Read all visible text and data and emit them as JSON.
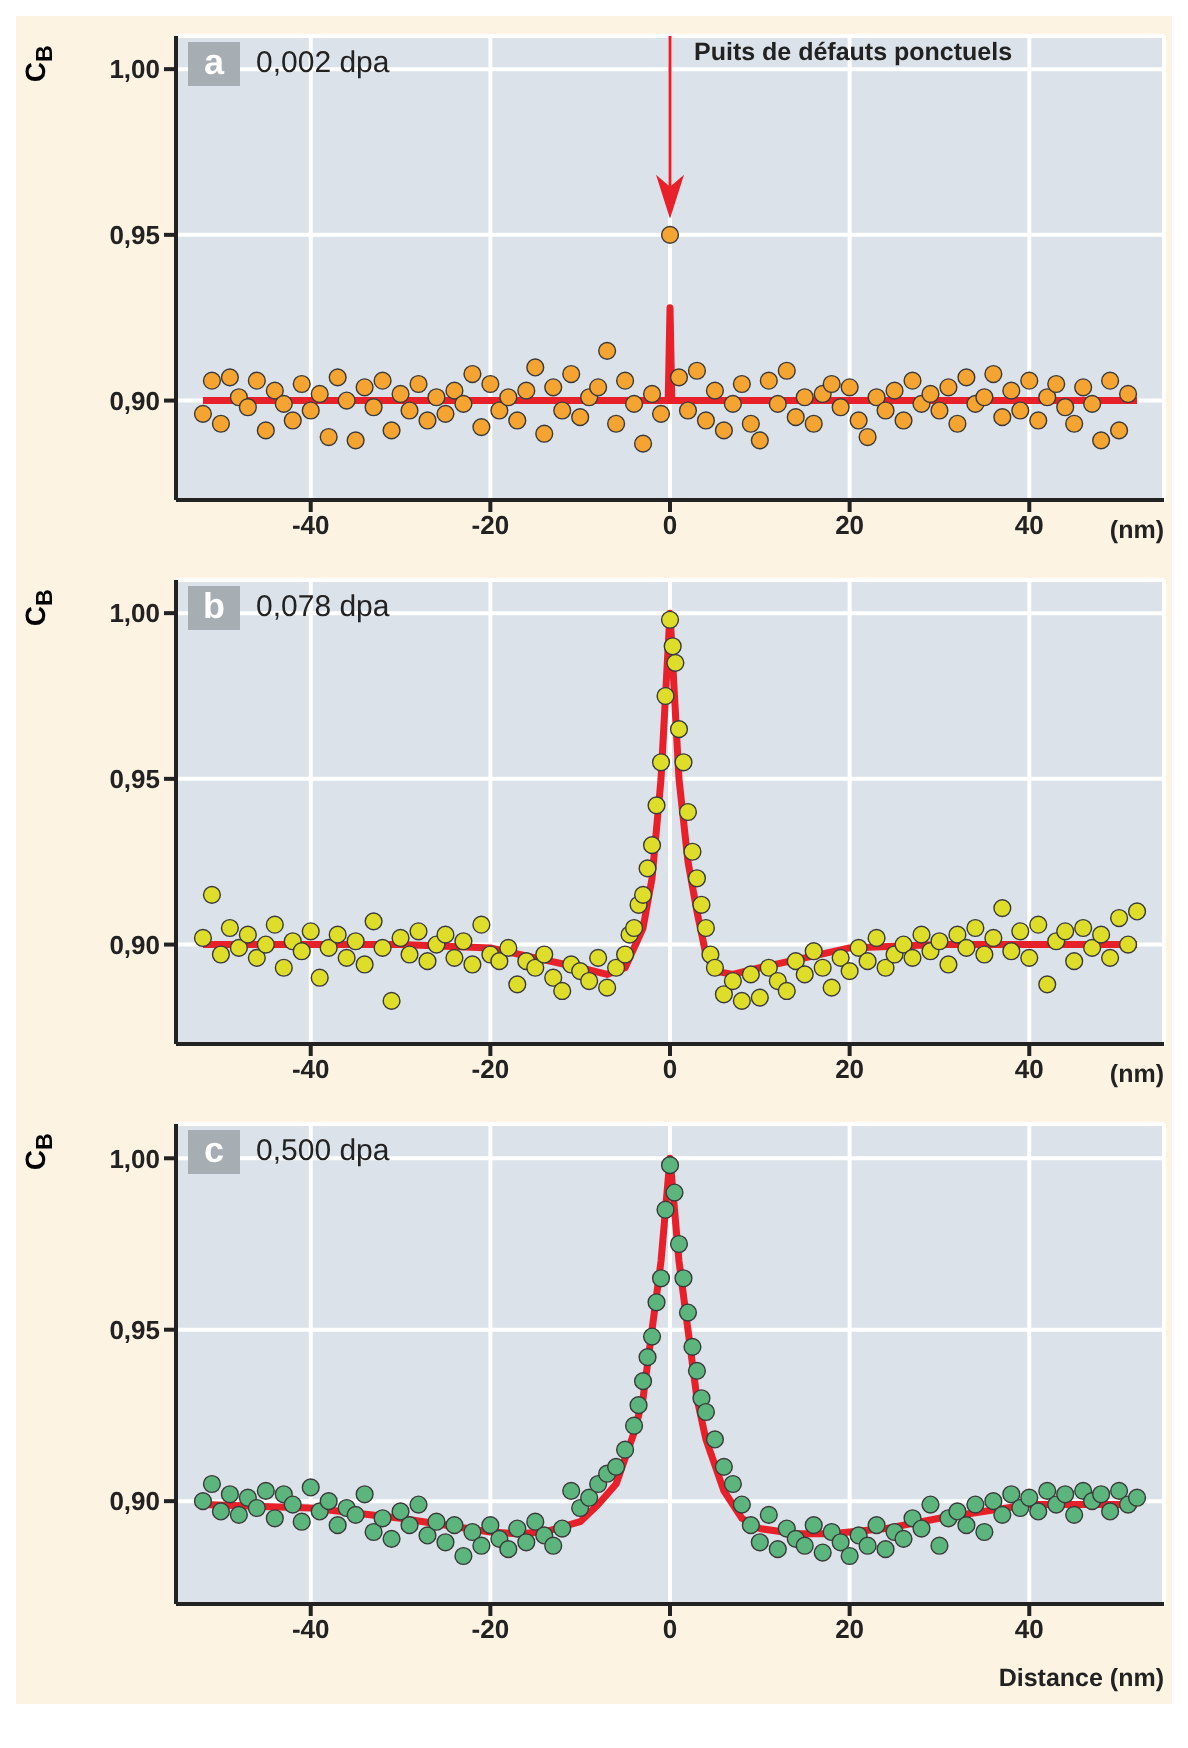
{
  "chart_data": [
    {
      "type": "scatter",
      "title": "a",
      "ylabel": "C$_{B}$",
      "xlabel": "(nm)",
      "annotations": [
        "0,002 dpa",
        "Puits de défauts ponctuels"
      ],
      "xlim": [
        -55,
        55
      ],
      "ylim": [
        0.87,
        1.01
      ],
      "xticks": [
        -40,
        -20,
        0,
        20,
        40
      ],
      "yticks": [
        {
          "value": 0.9,
          "label": "0,90"
        },
        {
          "value": 0.95,
          "label": "0,95"
        },
        {
          "value": 1.0,
          "label": "1,00"
        }
      ],
      "grid": true,
      "series": [
        {
          "type": "scatter",
          "marker": "circle",
          "color": "#f5a331",
          "x": [
            -52,
            -51,
            -50,
            -49,
            -48,
            -47,
            -46,
            -45,
            -44,
            -43,
            -42,
            -41,
            -40,
            -39,
            -38,
            -37,
            -36,
            -35,
            -34,
            -33,
            -32,
            -31,
            -30,
            -29,
            -28,
            -27,
            -26,
            -25,
            -24,
            -23,
            -22,
            -21,
            -20,
            -19,
            -18,
            -17,
            -16,
            -15,
            -14,
            -13,
            -12,
            -11,
            -10,
            -9,
            -8,
            -7,
            -6,
            -5,
            -4,
            -3,
            -2,
            -1,
            0,
            1,
            2,
            3,
            4,
            5,
            6,
            7,
            8,
            9,
            10,
            11,
            12,
            13,
            14,
            15,
            16,
            17,
            18,
            19,
            20,
            21,
            22,
            23,
            24,
            25,
            26,
            27,
            28,
            29,
            30,
            31,
            32,
            33,
            34,
            35,
            36,
            37,
            38,
            39,
            40,
            41,
            42,
            43,
            44,
            45,
            46,
            47,
            48,
            49,
            50,
            51
          ],
          "values": [
            0.896,
            0.906,
            0.893,
            0.907,
            0.901,
            0.898,
            0.906,
            0.891,
            0.903,
            0.899,
            0.894,
            0.905,
            0.897,
            0.902,
            0.889,
            0.907,
            0.9,
            0.888,
            0.904,
            0.898,
            0.906,
            0.891,
            0.902,
            0.897,
            0.905,
            0.894,
            0.901,
            0.896,
            0.903,
            0.899,
            0.908,
            0.892,
            0.905,
            0.897,
            0.901,
            0.894,
            0.903,
            0.91,
            0.89,
            0.904,
            0.897,
            0.908,
            0.895,
            0.901,
            0.904,
            0.915,
            0.893,
            0.906,
            0.899,
            0.887,
            0.902,
            0.896,
            0.95,
            0.907,
            0.897,
            0.909,
            0.894,
            0.903,
            0.891,
            0.899,
            0.905,
            0.893,
            0.888,
            0.906,
            0.899,
            0.909,
            0.895,
            0.901,
            0.893,
            0.902,
            0.905,
            0.898,
            0.904,
            0.894,
            0.889,
            0.901,
            0.897,
            0.903,
            0.894,
            0.906,
            0.899,
            0.902,
            0.897,
            0.904,
            0.893,
            0.907,
            0.899,
            0.901,
            0.908,
            0.895,
            0.903,
            0.897,
            0.906,
            0.894,
            0.901,
            0.905,
            0.898,
            0.893,
            0.904,
            0.899,
            0.888,
            0.906,
            0.891,
            0.902
          ]
        },
        {
          "type": "line",
          "color": "#e8202a",
          "x": [
            -52,
            -0.2,
            0,
            0.2,
            52
          ],
          "values": [
            0.9,
            0.9,
            0.928,
            0.9,
            0.9
          ]
        }
      ]
    },
    {
      "type": "scatter",
      "title": "b",
      "ylabel": "C$_{B}$",
      "xlabel": "(nm)",
      "annotations": [
        "0,078 dpa"
      ],
      "xlim": [
        -55,
        55
      ],
      "ylim": [
        0.87,
        1.01
      ],
      "xticks": [
        -40,
        -20,
        0,
        20,
        40
      ],
      "yticks": [
        {
          "value": 0.9,
          "label": "0,90"
        },
        {
          "value": 0.95,
          "label": "0,95"
        },
        {
          "value": 1.0,
          "label": "1,00"
        }
      ],
      "grid": true,
      "series": [
        {
          "type": "scatter",
          "marker": "circle",
          "color": "#dede2a",
          "x": [
            -52,
            -51,
            -50,
            -49,
            -48,
            -47,
            -46,
            -45,
            -44,
            -43,
            -42,
            -41,
            -40,
            -39,
            -38,
            -37,
            -36,
            -35,
            -34,
            -33,
            -32,
            -31,
            -30,
            -29,
            -28,
            -27,
            -26,
            -25,
            -24,
            -23,
            -22,
            -21,
            -20,
            -19,
            -18,
            -17,
            -16,
            -15,
            -14,
            -13,
            -12,
            -11,
            -10,
            -9,
            -8,
            -7,
            -6,
            -5,
            -4.5,
            -4,
            -3.5,
            -3,
            -2.5,
            -2,
            -1.5,
            -1,
            -0.5,
            0,
            0.3,
            0.6,
            1,
            1.5,
            2,
            2.5,
            3,
            3.5,
            4,
            4.5,
            5,
            6,
            7,
            8,
            9,
            10,
            11,
            12,
            13,
            14,
            15,
            16,
            17,
            18,
            19,
            20,
            21,
            22,
            23,
            24,
            25,
            26,
            27,
            28,
            29,
            30,
            31,
            32,
            33,
            34,
            35,
            36,
            37,
            38,
            39,
            40,
            41,
            42,
            43,
            44,
            45,
            46,
            47,
            48,
            49,
            50,
            51,
            52
          ],
          "values": [
            0.902,
            0.915,
            0.897,
            0.905,
            0.899,
            0.903,
            0.896,
            0.9,
            0.906,
            0.893,
            0.901,
            0.898,
            0.904,
            0.89,
            0.899,
            0.903,
            0.896,
            0.901,
            0.894,
            0.907,
            0.899,
            0.883,
            0.902,
            0.897,
            0.904,
            0.895,
            0.9,
            0.903,
            0.896,
            0.901,
            0.894,
            0.906,
            0.897,
            0.895,
            0.899,
            0.888,
            0.895,
            0.893,
            0.897,
            0.89,
            0.886,
            0.894,
            0.892,
            0.889,
            0.896,
            0.887,
            0.893,
            0.897,
            0.903,
            0.905,
            0.912,
            0.915,
            0.923,
            0.93,
            0.942,
            0.955,
            0.975,
            0.998,
            0.99,
            0.985,
            0.965,
            0.955,
            0.94,
            0.928,
            0.92,
            0.912,
            0.905,
            0.897,
            0.893,
            0.885,
            0.889,
            0.883,
            0.891,
            0.884,
            0.893,
            0.889,
            0.886,
            0.895,
            0.891,
            0.898,
            0.893,
            0.887,
            0.896,
            0.892,
            0.899,
            0.895,
            0.902,
            0.893,
            0.897,
            0.9,
            0.896,
            0.903,
            0.898,
            0.901,
            0.894,
            0.903,
            0.899,
            0.905,
            0.897,
            0.902,
            0.911,
            0.898,
            0.904,
            0.896,
            0.906,
            0.888,
            0.901,
            0.904,
            0.895,
            0.905,
            0.899,
            0.903,
            0.896,
            0.908,
            0.9,
            0.91
          ]
        },
        {
          "type": "line",
          "color": "#e8202a",
          "x": [
            -52,
            -30,
            -20,
            -15,
            -10,
            -7,
            -5,
            -3,
            -2,
            -1,
            -0.5,
            0,
            0.5,
            1,
            2,
            3,
            4,
            5,
            7,
            10,
            15,
            20,
            30,
            52
          ],
          "values": [
            0.9,
            0.9,
            0.899,
            0.896,
            0.893,
            0.891,
            0.893,
            0.905,
            0.92,
            0.95,
            0.975,
            1.0,
            0.975,
            0.95,
            0.925,
            0.91,
            0.897,
            0.892,
            0.891,
            0.893,
            0.896,
            0.899,
            0.9,
            0.9
          ]
        }
      ]
    },
    {
      "type": "scatter",
      "title": "c",
      "ylabel": "C$_{B}$",
      "xlabel": "Distance (nm)",
      "annotations": [
        "0,500 dpa"
      ],
      "xlim": [
        -55,
        55
      ],
      "ylim": [
        0.87,
        1.01
      ],
      "xticks": [
        -40,
        -20,
        0,
        20,
        40
      ],
      "yticks": [
        {
          "value": 0.9,
          "label": "0,90"
        },
        {
          "value": 0.95,
          "label": "0,95"
        },
        {
          "value": 1.0,
          "label": "1,00"
        }
      ],
      "grid": true,
      "series": [
        {
          "type": "scatter",
          "marker": "circle",
          "color": "#5db57e",
          "x": [
            -52,
            -51,
            -50,
            -49,
            -48,
            -47,
            -46,
            -45,
            -44,
            -43,
            -42,
            -41,
            -40,
            -39,
            -38,
            -37,
            -36,
            -35,
            -34,
            -33,
            -32,
            -31,
            -30,
            -29,
            -28,
            -27,
            -26,
            -25,
            -24,
            -23,
            -22,
            -21,
            -20,
            -19,
            -18,
            -17,
            -16,
            -15,
            -14,
            -13,
            -12,
            -11,
            -10,
            -9,
            -8,
            -7,
            -6,
            -5,
            -4,
            -3.5,
            -3,
            -2.5,
            -2,
            -1.5,
            -1,
            -0.5,
            0,
            0.5,
            1,
            1.5,
            2,
            2.5,
            3,
            3.5,
            4,
            5,
            6,
            7,
            8,
            9,
            10,
            11,
            12,
            13,
            14,
            15,
            16,
            17,
            18,
            19,
            20,
            21,
            22,
            23,
            24,
            25,
            26,
            27,
            28,
            29,
            30,
            31,
            32,
            33,
            34,
            35,
            36,
            37,
            38,
            39,
            40,
            41,
            42,
            43,
            44,
            45,
            46,
            47,
            48,
            49,
            50,
            51,
            52
          ],
          "values": [
            0.9,
            0.905,
            0.897,
            0.902,
            0.896,
            0.901,
            0.898,
            0.903,
            0.895,
            0.902,
            0.899,
            0.894,
            0.904,
            0.897,
            0.9,
            0.893,
            0.898,
            0.896,
            0.902,
            0.891,
            0.895,
            0.889,
            0.897,
            0.893,
            0.899,
            0.89,
            0.894,
            0.888,
            0.893,
            0.884,
            0.891,
            0.887,
            0.893,
            0.889,
            0.886,
            0.892,
            0.888,
            0.894,
            0.89,
            0.887,
            0.892,
            0.903,
            0.898,
            0.901,
            0.905,
            0.908,
            0.91,
            0.915,
            0.922,
            0.928,
            0.935,
            0.942,
            0.948,
            0.958,
            0.965,
            0.985,
            0.998,
            0.99,
            0.975,
            0.965,
            0.955,
            0.945,
            0.938,
            0.93,
            0.926,
            0.918,
            0.91,
            0.905,
            0.899,
            0.893,
            0.888,
            0.896,
            0.886,
            0.892,
            0.889,
            0.887,
            0.893,
            0.885,
            0.891,
            0.888,
            0.884,
            0.89,
            0.887,
            0.893,
            0.886,
            0.891,
            0.889,
            0.895,
            0.892,
            0.899,
            0.887,
            0.895,
            0.897,
            0.893,
            0.899,
            0.891,
            0.9,
            0.896,
            0.902,
            0.898,
            0.901,
            0.897,
            0.903,
            0.899,
            0.902,
            0.896,
            0.903,
            0.9,
            0.902,
            0.897,
            0.903,
            0.899,
            0.901
          ]
        },
        {
          "type": "line",
          "color": "#e8202a",
          "x": [
            -52,
            -40,
            -30,
            -20,
            -17,
            -14,
            -10,
            -8,
            -6,
            -4,
            -3,
            -2,
            -1,
            0,
            1,
            2,
            3,
            4,
            6,
            8,
            10,
            14,
            18,
            24,
            30,
            40,
            52
          ],
          "values": [
            0.899,
            0.898,
            0.895,
            0.891,
            0.8905,
            0.891,
            0.894,
            0.899,
            0.905,
            0.92,
            0.93,
            0.95,
            0.97,
            1.0,
            0.97,
            0.95,
            0.93,
            0.918,
            0.903,
            0.895,
            0.892,
            0.8905,
            0.8905,
            0.892,
            0.895,
            0.899,
            0.899
          ]
        }
      ]
    }
  ]
}
